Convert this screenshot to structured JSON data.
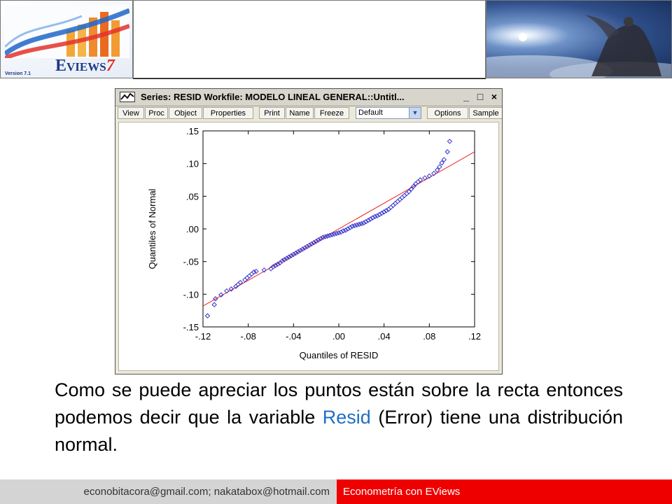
{
  "header": {
    "logo": {
      "brand": "EViews",
      "brand_parts": [
        "E",
        "VIEWS",
        "7"
      ],
      "version": "Version 7.1"
    }
  },
  "window": {
    "title": "Series: RESID    Workfile: MODELO LINEAL GENERAL::Untitl...",
    "controls": [
      "_",
      "□",
      "×"
    ],
    "toolbar": [
      "View",
      "Proc",
      "Object",
      "Properties",
      "Print",
      "Name",
      "Freeze",
      "Options",
      "Sample"
    ],
    "display_select": "Default"
  },
  "chart_data": {
    "type": "scatter",
    "xlabel": "Quantiles of RESID",
    "ylabel": "Quantiles of Normal",
    "xlim": [
      -0.12,
      0.12
    ],
    "ylim": [
      -0.15,
      0.15
    ],
    "x_ticks": [
      -0.12,
      -0.08,
      -0.04,
      0.0,
      0.04,
      0.08,
      0.12
    ],
    "x_tick_labels": [
      "-.12",
      "-.08",
      "-.04",
      ".00",
      ".04",
      ".08",
      ".12"
    ],
    "y_ticks": [
      -0.15,
      -0.1,
      -0.05,
      0.0,
      0.05,
      0.1,
      0.15
    ],
    "y_tick_labels": [
      "-.15",
      "-.10",
      "-.05",
      ".00",
      ".05",
      ".10",
      ".15"
    ],
    "marker_color": "#3333cc",
    "line_color": "#ee2222",
    "reference_line": {
      "x": [
        -0.12,
        0.12
      ],
      "y": [
        -0.118,
        0.118
      ]
    },
    "points": [
      [
        -0.116,
        -0.133
      ],
      [
        -0.11,
        -0.116
      ],
      [
        -0.109,
        -0.107
      ],
      [
        -0.104,
        -0.101
      ],
      [
        -0.099,
        -0.095
      ],
      [
        -0.095,
        -0.092
      ],
      [
        -0.091,
        -0.088
      ],
      [
        -0.089,
        -0.085
      ],
      [
        -0.087,
        -0.082
      ],
      [
        -0.083,
        -0.078
      ],
      [
        -0.081,
        -0.075
      ],
      [
        -0.079,
        -0.072
      ],
      [
        -0.077,
        -0.069
      ],
      [
        -0.075,
        -0.066
      ],
      [
        -0.073,
        -0.065
      ],
      [
        -0.066,
        -0.063
      ],
      [
        -0.06,
        -0.061
      ],
      [
        -0.058,
        -0.058
      ],
      [
        -0.056,
        -0.056
      ],
      [
        -0.054,
        -0.054
      ],
      [
        -0.052,
        -0.052
      ],
      [
        -0.05,
        -0.049
      ],
      [
        -0.048,
        -0.047
      ],
      [
        -0.046,
        -0.045
      ],
      [
        -0.044,
        -0.043
      ],
      [
        -0.042,
        -0.041
      ],
      [
        -0.04,
        -0.039
      ],
      [
        -0.038,
        -0.037
      ],
      [
        -0.036,
        -0.035
      ],
      [
        -0.034,
        -0.033
      ],
      [
        -0.032,
        -0.031
      ],
      [
        -0.03,
        -0.029
      ],
      [
        -0.028,
        -0.027
      ],
      [
        -0.026,
        -0.025
      ],
      [
        -0.024,
        -0.023
      ],
      [
        -0.022,
        -0.021
      ],
      [
        -0.02,
        -0.019
      ],
      [
        -0.018,
        -0.017
      ],
      [
        -0.016,
        -0.015
      ],
      [
        -0.014,
        -0.013
      ],
      [
        -0.012,
        -0.012
      ],
      [
        -0.01,
        -0.011
      ],
      [
        -0.008,
        -0.01
      ],
      [
        -0.006,
        -0.009
      ],
      [
        -0.004,
        -0.008
      ],
      [
        -0.002,
        -0.007
      ],
      [
        0.0,
        -0.006
      ],
      [
        0.002,
        -0.005
      ],
      [
        0.004,
        -0.003
      ],
      [
        0.006,
        -0.002
      ],
      [
        0.008,
        0.0
      ],
      [
        0.01,
        0.002
      ],
      [
        0.012,
        0.004
      ],
      [
        0.014,
        0.005
      ],
      [
        0.016,
        0.006
      ],
      [
        0.018,
        0.007
      ],
      [
        0.02,
        0.008
      ],
      [
        0.022,
        0.009
      ],
      [
        0.024,
        0.011
      ],
      [
        0.026,
        0.013
      ],
      [
        0.028,
        0.015
      ],
      [
        0.03,
        0.017
      ],
      [
        0.032,
        0.019
      ],
      [
        0.034,
        0.02
      ],
      [
        0.036,
        0.022
      ],
      [
        0.038,
        0.024
      ],
      [
        0.04,
        0.026
      ],
      [
        0.042,
        0.028
      ],
      [
        0.044,
        0.03
      ],
      [
        0.046,
        0.033
      ],
      [
        0.048,
        0.036
      ],
      [
        0.05,
        0.039
      ],
      [
        0.052,
        0.042
      ],
      [
        0.054,
        0.045
      ],
      [
        0.056,
        0.048
      ],
      [
        0.058,
        0.051
      ],
      [
        0.06,
        0.054
      ],
      [
        0.062,
        0.057
      ],
      [
        0.064,
        0.061
      ],
      [
        0.066,
        0.065
      ],
      [
        0.068,
        0.069
      ],
      [
        0.07,
        0.072
      ],
      [
        0.072,
        0.075
      ],
      [
        0.076,
        0.078
      ],
      [
        0.08,
        0.081
      ],
      [
        0.084,
        0.085
      ],
      [
        0.087,
        0.09
      ],
      [
        0.089,
        0.095
      ],
      [
        0.091,
        0.101
      ],
      [
        0.093,
        0.106
      ],
      [
        0.096,
        0.118
      ],
      [
        0.098,
        0.134
      ]
    ]
  },
  "caption": {
    "before": "Como se puede apreciar los puntos están sobre la recta entonces podemos decir que la variable ",
    "highlight": "Resid",
    "after": " (Error) tiene una distribución normal."
  },
  "footer": {
    "left": "econobitacora@gmail.com;  nakatabox@hotmail.com",
    "right": "Econometría con EViews"
  }
}
